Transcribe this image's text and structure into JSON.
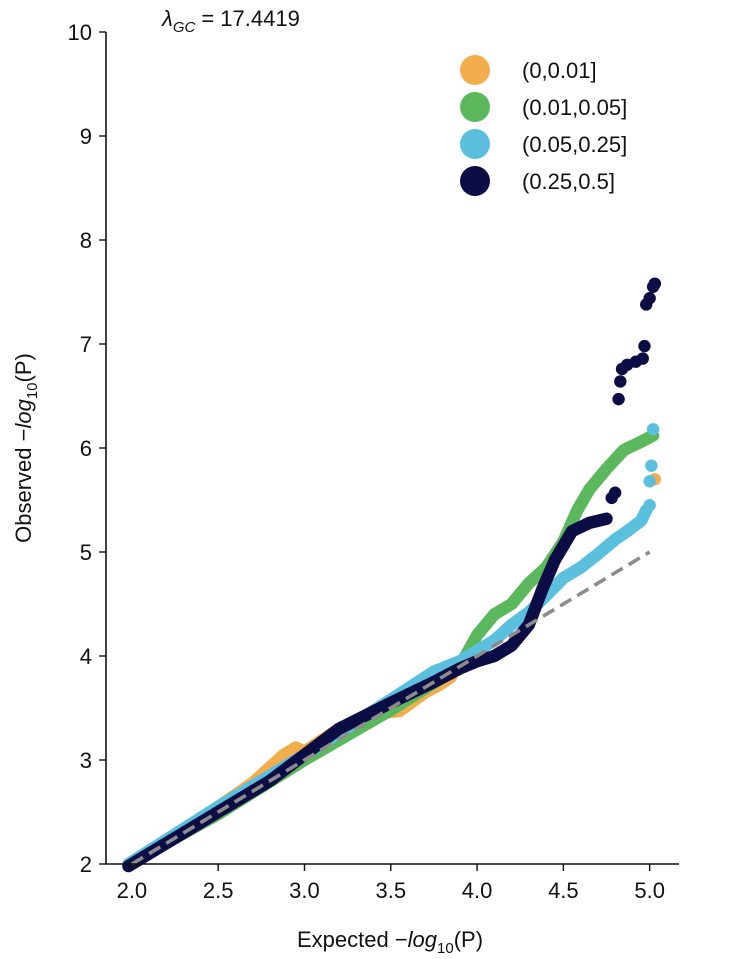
{
  "chart_data": {
    "type": "scatter",
    "title_prefix": "λ",
    "title_subscript": "GC",
    "title_value": "= 17.4419",
    "xlabel": {
      "main": "Expected −",
      "func": "log",
      "sub": "10",
      "tail": "(P)"
    },
    "ylabel": {
      "main": "Observed −",
      "func": "log",
      "sub": "10",
      "tail": "(P)"
    },
    "xlim": [
      1.85,
      5.17
    ],
    "ylim": [
      2,
      10
    ],
    "xticks": [
      2.0,
      2.5,
      3.0,
      3.5,
      4.0,
      4.5,
      5.0
    ],
    "xtick_labels": [
      "2.0",
      "2.5",
      "3.0",
      "3.5",
      "4.0",
      "4.5",
      "5.0"
    ],
    "yticks": [
      2,
      3,
      4,
      5,
      6,
      7,
      8,
      9,
      10
    ],
    "ytick_labels": [
      "2",
      "3",
      "4",
      "5",
      "6",
      "7",
      "8",
      "9",
      "10"
    ],
    "grid": false,
    "legend_position": "top-right",
    "reference_line": {
      "style": "dashed",
      "color": "#8c8c8c",
      "x": [
        2.0,
        5.0
      ],
      "y": [
        2.0,
        5.0
      ]
    },
    "series": [
      {
        "name": "(0,0.01]",
        "color": "#f2ad4c",
        "curve": [
          [
            1.98,
            2.0
          ],
          [
            2.3,
            2.32
          ],
          [
            2.7,
            2.78
          ],
          [
            2.88,
            3.05
          ],
          [
            2.95,
            3.12
          ],
          [
            3.0,
            3.08
          ],
          [
            3.2,
            3.3
          ],
          [
            3.4,
            3.45
          ],
          [
            3.55,
            3.47
          ],
          [
            3.7,
            3.65
          ],
          [
            3.78,
            3.72
          ],
          [
            3.85,
            3.8
          ]
        ],
        "extra": [
          [
            5.03,
            5.7
          ]
        ]
      },
      {
        "name": "(0.01,0.05]",
        "color": "#5cb85c",
        "curve": [
          [
            1.98,
            2.0
          ],
          [
            2.5,
            2.48
          ],
          [
            3.0,
            3.0
          ],
          [
            3.5,
            3.48
          ],
          [
            3.9,
            3.9
          ],
          [
            4.0,
            4.2
          ],
          [
            4.1,
            4.4
          ],
          [
            4.2,
            4.5
          ],
          [
            4.3,
            4.7
          ],
          [
            4.4,
            4.85
          ],
          [
            4.5,
            5.1
          ],
          [
            4.58,
            5.4
          ],
          [
            4.65,
            5.6
          ],
          [
            4.75,
            5.8
          ],
          [
            4.85,
            5.98
          ],
          [
            4.95,
            6.06
          ],
          [
            5.02,
            6.12
          ]
        ],
        "extra": []
      },
      {
        "name": "(0.05,0.25]",
        "color": "#5bc0de",
        "curve": [
          [
            1.98,
            2.0
          ],
          [
            2.5,
            2.55
          ],
          [
            3.0,
            3.05
          ],
          [
            3.5,
            3.58
          ],
          [
            3.75,
            3.85
          ],
          [
            3.9,
            3.95
          ],
          [
            4.0,
            4.05
          ],
          [
            4.1,
            4.15
          ],
          [
            4.2,
            4.3
          ],
          [
            4.3,
            4.42
          ],
          [
            4.4,
            4.58
          ],
          [
            4.5,
            4.75
          ],
          [
            4.6,
            4.85
          ],
          [
            4.7,
            4.98
          ],
          [
            4.8,
            5.12
          ],
          [
            4.87,
            5.2
          ],
          [
            4.95,
            5.3
          ],
          [
            4.98,
            5.4
          ]
        ],
        "extra": [
          [
            5.0,
            5.45
          ],
          [
            5.0,
            5.68
          ],
          [
            5.01,
            5.83
          ],
          [
            5.02,
            6.18
          ]
        ]
      },
      {
        "name": "(0.25,0.5]",
        "color": "#0d0d45",
        "curve": [
          [
            1.98,
            1.98
          ],
          [
            2.2,
            2.2
          ],
          [
            2.5,
            2.5
          ],
          [
            2.8,
            2.8
          ],
          [
            3.0,
            3.05
          ],
          [
            3.2,
            3.3
          ],
          [
            3.5,
            3.55
          ],
          [
            3.75,
            3.75
          ],
          [
            3.9,
            3.88
          ],
          [
            4.0,
            3.95
          ],
          [
            4.1,
            4.0
          ],
          [
            4.2,
            4.1
          ],
          [
            4.3,
            4.3
          ],
          [
            4.38,
            4.65
          ],
          [
            4.45,
            4.92
          ],
          [
            4.55,
            5.2
          ],
          [
            4.65,
            5.28
          ],
          [
            4.75,
            5.32
          ]
        ],
        "extra": [
          [
            4.78,
            5.52
          ],
          [
            4.8,
            5.57
          ],
          [
            4.82,
            6.47
          ],
          [
            4.83,
            6.64
          ],
          [
            4.84,
            6.76
          ],
          [
            4.87,
            6.8
          ],
          [
            4.92,
            6.83
          ],
          [
            4.96,
            6.86
          ],
          [
            4.97,
            6.98
          ],
          [
            4.98,
            7.38
          ],
          [
            5.0,
            7.44
          ],
          [
            5.02,
            7.55
          ],
          [
            5.03,
            7.58
          ]
        ]
      }
    ]
  }
}
